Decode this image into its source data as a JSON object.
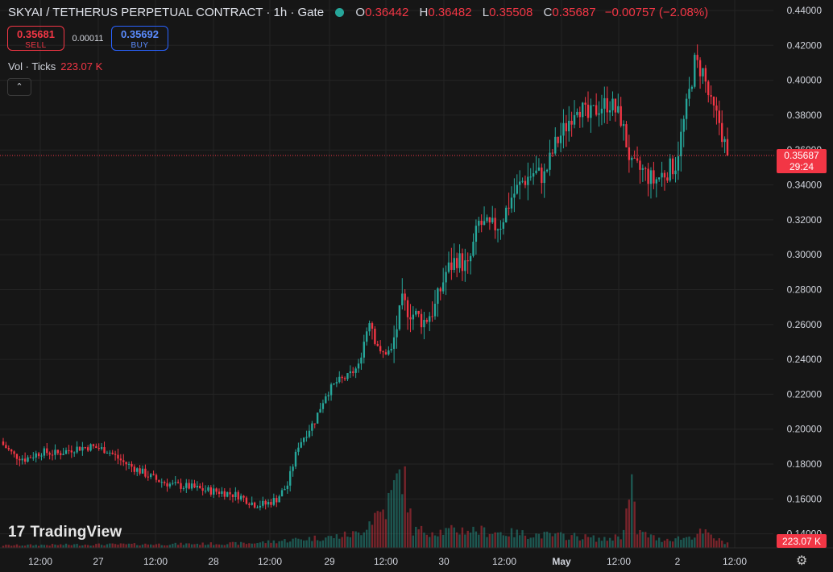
{
  "header": {
    "symbol": "SKYAI / TETHERUS PERPETUAL CONTRACT · 1h · Gate",
    "o_label": "O",
    "o_value": "0.36442",
    "h_label": "H",
    "h_value": "0.36482",
    "l_label": "L",
    "l_value": "0.35508",
    "c_label": "C",
    "c_value": "0.35687",
    "change": "−0.00757 (−2.08%)"
  },
  "trade": {
    "sell_price": "0.35681",
    "sell_label": "SELL",
    "spread": "0.00011",
    "buy_price": "0.35692",
    "buy_label": "BUY"
  },
  "volume_legend": {
    "label": "Vol · Ticks",
    "value": "223.07 K"
  },
  "collapse_icon": "chevron-up-icon",
  "branding": {
    "logo_mark": "17",
    "text": "TradingView"
  },
  "settings_icon": "gear-icon",
  "colors": {
    "up": "#26a69a",
    "down": "#f23645",
    "background": "#161616",
    "grid": "#242424",
    "buy": "#2962ff"
  },
  "chart_data": {
    "type": "candlestick",
    "interval": "1h",
    "y_ticks": [
      "0.44000",
      "0.42000",
      "0.40000",
      "0.38000",
      "0.36000",
      "0.34000",
      "0.32000",
      "0.30000",
      "0.28000",
      "0.26000",
      "0.24000",
      "0.22000",
      "0.20000",
      "0.18000",
      "0.16000",
      "0.14000"
    ],
    "ylim": [
      0.132,
      0.446
    ],
    "x_ticks": [
      "12:00",
      "27",
      "12:00",
      "28",
      "12:00",
      "29",
      "12:00",
      "30",
      "12:00",
      "May",
      "12:00",
      "2",
      "12:00"
    ],
    "last_price": {
      "value": "0.35687",
      "countdown": "29:24"
    },
    "last_volume_label": "223.07 K",
    "close_anchors": [
      [
        0,
        0.191
      ],
      [
        4,
        0.185
      ],
      [
        8,
        0.183
      ],
      [
        14,
        0.187
      ],
      [
        20,
        0.186
      ],
      [
        26,
        0.189
      ],
      [
        32,
        0.19
      ],
      [
        38,
        0.188
      ],
      [
        44,
        0.181
      ],
      [
        50,
        0.176
      ],
      [
        56,
        0.171
      ],
      [
        62,
        0.168
      ],
      [
        68,
        0.167
      ],
      [
        74,
        0.165
      ],
      [
        80,
        0.164
      ],
      [
        86,
        0.162
      ],
      [
        92,
        0.157
      ],
      [
        96,
        0.157
      ],
      [
        100,
        0.16
      ],
      [
        104,
        0.168
      ],
      [
        108,
        0.191
      ],
      [
        114,
        0.205
      ],
      [
        118,
        0.22
      ],
      [
        122,
        0.227
      ],
      [
        126,
        0.23
      ],
      [
        130,
        0.236
      ],
      [
        134,
        0.265
      ],
      [
        138,
        0.243
      ],
      [
        142,
        0.245
      ],
      [
        146,
        0.272
      ],
      [
        150,
        0.266
      ],
      [
        154,
        0.262
      ],
      [
        158,
        0.27
      ],
      [
        162,
        0.29
      ],
      [
        166,
        0.298
      ],
      [
        170,
        0.292
      ],
      [
        174,
        0.318
      ],
      [
        178,
        0.315
      ],
      [
        182,
        0.318
      ],
      [
        186,
        0.333
      ],
      [
        190,
        0.342
      ],
      [
        194,
        0.347
      ],
      [
        198,
        0.345
      ],
      [
        202,
        0.363
      ],
      [
        206,
        0.374
      ],
      [
        210,
        0.387
      ],
      [
        214,
        0.378
      ],
      [
        218,
        0.385
      ],
      [
        222,
        0.387
      ],
      [
        226,
        0.378
      ],
      [
        230,
        0.35
      ],
      [
        234,
        0.348
      ],
      [
        238,
        0.342
      ],
      [
        242,
        0.347
      ],
      [
        246,
        0.352
      ],
      [
        250,
        0.384
      ],
      [
        253,
        0.41
      ],
      [
        256,
        0.405
      ],
      [
        259,
        0.385
      ],
      [
        262,
        0.376
      ],
      [
        265,
        0.357
      ]
    ],
    "volume_profile": [
      [
        0,
        6
      ],
      [
        30,
        8
      ],
      [
        60,
        9
      ],
      [
        90,
        11
      ],
      [
        100,
        16
      ],
      [
        110,
        22
      ],
      [
        120,
        26
      ],
      [
        130,
        35
      ],
      [
        136,
        80
      ],
      [
        140,
        95
      ],
      [
        146,
        190
      ],
      [
        150,
        42
      ],
      [
        160,
        40
      ],
      [
        170,
        44
      ],
      [
        180,
        38
      ],
      [
        190,
        34
      ],
      [
        200,
        30
      ],
      [
        210,
        28
      ],
      [
        220,
        20
      ],
      [
        226,
        30
      ],
      [
        230,
        140
      ],
      [
        232,
        40
      ],
      [
        240,
        20
      ],
      [
        250,
        25
      ],
      [
        256,
        38
      ],
      [
        262,
        18
      ],
      [
        265,
        12
      ]
    ]
  }
}
